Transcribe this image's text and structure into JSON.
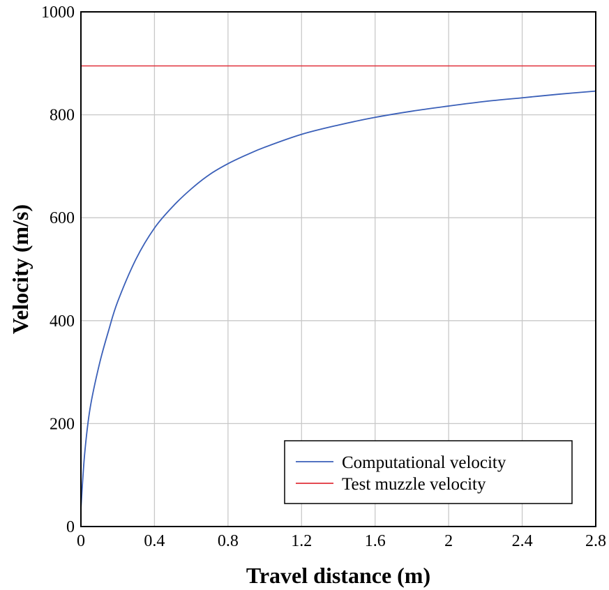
{
  "chart_data": {
    "type": "line",
    "title": "",
    "xlabel": "Travel distance (m)",
    "ylabel": "Velocity (m/s)",
    "xlim": [
      0,
      2.8
    ],
    "ylim": [
      0,
      1000
    ],
    "xticks": [
      0,
      0.4,
      0.8,
      1.2,
      1.6,
      2,
      2.4,
      2.8
    ],
    "xtick_labels": [
      "0",
      "0.4",
      "0.8",
      "1.2",
      "1.6",
      "2",
      "2.4",
      "2.8"
    ],
    "yticks": [
      0,
      200,
      400,
      600,
      800,
      1000
    ],
    "ytick_labels": [
      "0",
      "200",
      "400",
      "600",
      "800",
      "1000"
    ],
    "grid": true,
    "legend_position": "bottom-right",
    "series": [
      {
        "name": "Computational velocity",
        "color": "#3a5fb8",
        "x": [
          0,
          0.02,
          0.05,
          0.1,
          0.15,
          0.2,
          0.3,
          0.4,
          0.5,
          0.6,
          0.7,
          0.8,
          0.9,
          1.0,
          1.2,
          1.4,
          1.6,
          1.8,
          2.0,
          2.2,
          2.4,
          2.6,
          2.8
        ],
        "y": [
          35,
          140,
          230,
          315,
          380,
          437,
          520,
          580,
          622,
          656,
          684,
          705,
          722,
          737,
          762,
          780,
          795,
          807,
          817,
          826,
          833,
          840,
          846
        ]
      },
      {
        "name": "Test muzzle velocity",
        "color": "#e0303a",
        "x": [
          0,
          2.8
        ],
        "y": [
          895,
          895
        ]
      }
    ]
  }
}
